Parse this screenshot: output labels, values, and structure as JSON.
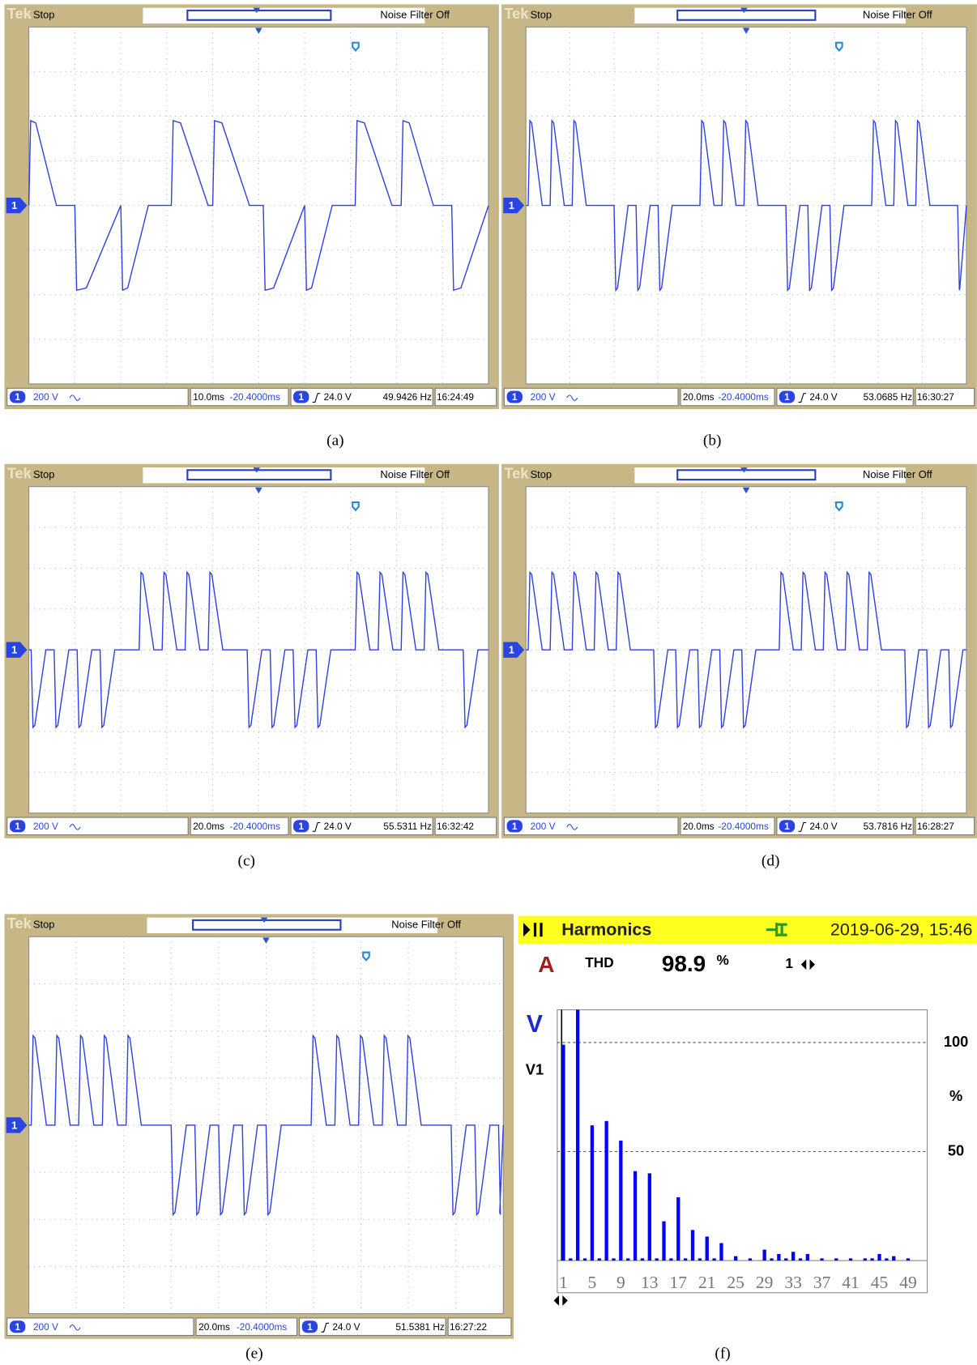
{
  "panels": [
    {
      "tek": "Tek",
      "status": "Stop",
      "noise_filter": "Noise Filter Off",
      "channel": "1",
      "volts": "200 V",
      "timebase": "10.0ms",
      "position": "-20.4000ms",
      "trigger": "24.0 V",
      "frequency": "49.9426 Hz",
      "clock": "16:24:49",
      "caption": "(a)"
    },
    {
      "tek": "Tek",
      "status": "Stop",
      "noise_filter": "Noise Filter Off",
      "channel": "1",
      "volts": "200 V",
      "timebase": "20.0ms",
      "position": "-20.4000ms",
      "trigger": "24.0 V",
      "frequency": "53.0685 Hz",
      "clock": "16:30:27",
      "caption": "(b)"
    },
    {
      "tek": "Tek",
      "status": "Stop",
      "noise_filter": "Noise Filter Off",
      "channel": "1",
      "volts": "200 V",
      "timebase": "20.0ms",
      "position": "-20.4000ms",
      "trigger": "24.0 V",
      "frequency": "55.5311 Hz",
      "clock": "16:32:42",
      "caption": "(c)"
    },
    {
      "tek": "Tek",
      "status": "Stop",
      "noise_filter": "Noise Filter Off",
      "channel": "1",
      "volts": "200 V",
      "timebase": "20.0ms",
      "position": "-20.4000ms",
      "trigger": "24.0 V",
      "frequency": "53.7816 Hz",
      "clock": "16:28:27",
      "caption": "(d)"
    },
    {
      "tek": "Tek",
      "status": "Stop",
      "noise_filter": "Noise Filter Off",
      "channel": "1",
      "volts": "200 V",
      "timebase": "20.0ms",
      "position": "-20.4000ms",
      "trigger": "24.0 V",
      "frequency": "51.5381 Hz",
      "clock": "16:27:22",
      "caption": "(e)"
    }
  ],
  "harmonics": {
    "title": "Harmonics",
    "datetime": "2019-06-29, 15:46",
    "phase": "A",
    "thd_label": "THD",
    "thd_value": 98.9,
    "thd_unit": "%",
    "cursor": "1",
    "caption": "(f)",
    "chart": {
      "type": "bar",
      "axis_label": "V",
      "series_label": "V1",
      "y_unit": "%",
      "color": "#0000ff",
      "grid": true,
      "categories": [
        "1",
        null,
        null,
        null,
        "5",
        null,
        null,
        null,
        "9",
        null,
        null,
        null,
        "13",
        null,
        null,
        null,
        "17",
        null,
        null,
        null,
        "21",
        null,
        null,
        null,
        "25",
        null,
        null,
        null,
        "29",
        null,
        null,
        null,
        "33",
        null,
        null,
        null,
        "37",
        null,
        null,
        null,
        "41",
        null,
        null,
        null,
        "45",
        null,
        null,
        null,
        "49",
        null
      ],
      "values": [
        99,
        1,
        115,
        1,
        62,
        1,
        64,
        1,
        55,
        1,
        41,
        1,
        40,
        1,
        18,
        1,
        29,
        1,
        14,
        1,
        11,
        1,
        8,
        0,
        2,
        0,
        1,
        0,
        5,
        1,
        3,
        1,
        4,
        1,
        3,
        0,
        1,
        0,
        1,
        0,
        1,
        0,
        1,
        1,
        3,
        1,
        2,
        0,
        1,
        0
      ],
      "ylim": [
        0,
        115
      ],
      "yticks": [
        50,
        100
      ]
    }
  }
}
